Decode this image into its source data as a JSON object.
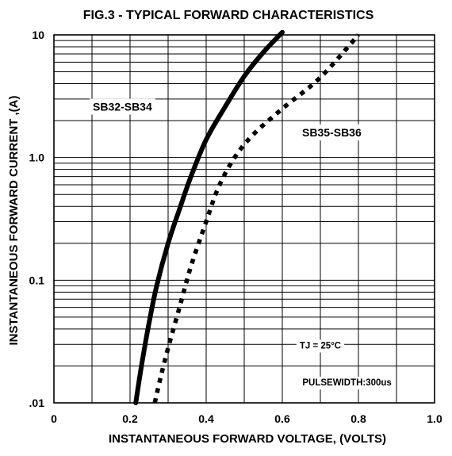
{
  "chart_data": {
    "type": "line",
    "title": "FIG.3 - TYPICAL FORWARD CHARACTERISTICS",
    "xlabel": "INSTANTANEOUS FORWARD VOLTAGE, (VOLTS)",
    "ylabel": "INSTANTANEOUS  FORWARD CURRENT ,(A)",
    "xlim": [
      0,
      1.0
    ],
    "ylim": [
      0.01,
      10
    ],
    "y_scale": "log",
    "grid": true,
    "x_ticks": [
      "0",
      "0.2",
      "0.4",
      "0.6",
      "0.8",
      "1.0"
    ],
    "y_ticks": [
      {
        "value": 0.01,
        "label": ".01"
      },
      {
        "value": 0.1,
        "label": "0.1"
      },
      {
        "value": 1,
        "label": "1.0"
      },
      {
        "value": 10,
        "label": "10"
      }
    ],
    "series": [
      {
        "name": "SB32-SB34",
        "style": "solid",
        "color": "#000000",
        "x": [
          0.215,
          0.23,
          0.25,
          0.27,
          0.3,
          0.33,
          0.36,
          0.4,
          0.45,
          0.5,
          0.55,
          0.6
        ],
        "y": [
          0.01,
          0.02,
          0.045,
          0.09,
          0.2,
          0.38,
          0.7,
          1.4,
          2.6,
          4.6,
          7.2,
          10.5
        ]
      },
      {
        "name": "SB35-SB36",
        "style": "dotted",
        "color": "#000000",
        "x": [
          0.265,
          0.28,
          0.3,
          0.33,
          0.36,
          0.4,
          0.43,
          0.47,
          0.52,
          0.6,
          0.7,
          0.8
        ],
        "y": [
          0.01,
          0.016,
          0.028,
          0.06,
          0.13,
          0.3,
          0.55,
          0.95,
          1.5,
          2.5,
          4.5,
          10
        ]
      }
    ],
    "annotations": [
      {
        "text": "SB32-SB34",
        "x": 0.18,
        "y": 2.6
      },
      {
        "text": "SB35-SB36",
        "x": 0.73,
        "y": 1.6
      },
      {
        "text": "TJ = 25°C",
        "x": 0.7,
        "y": 0.029
      },
      {
        "text": "PULSEWIDTH:300us",
        "x": 0.77,
        "y": 0.0145
      }
    ]
  }
}
